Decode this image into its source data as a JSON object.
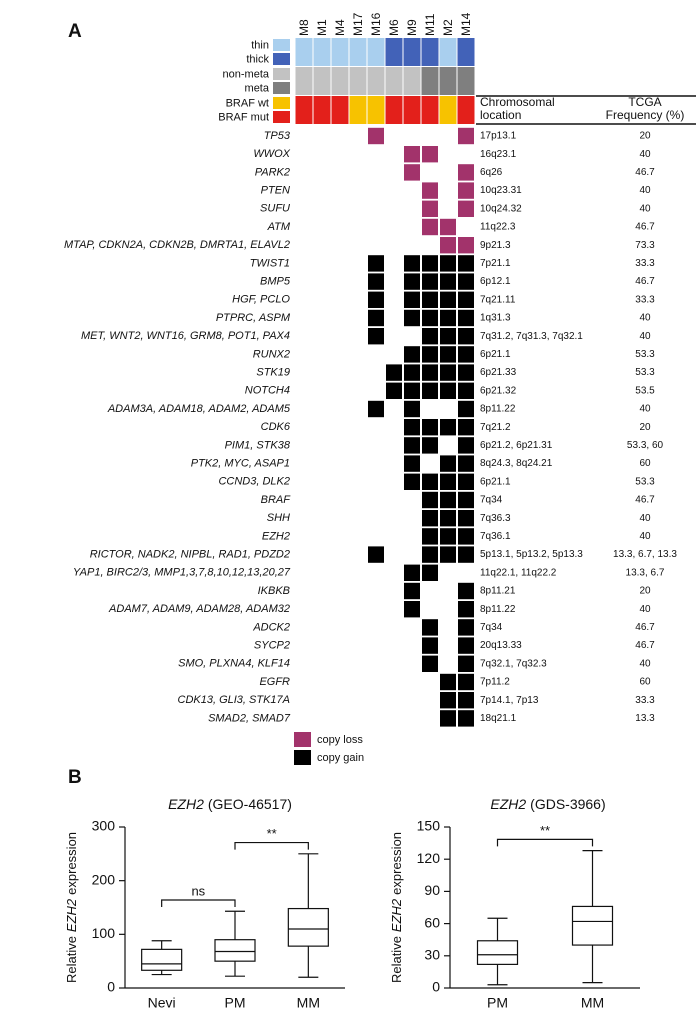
{
  "panel_a": {
    "label": "A",
    "thickness_legend": [
      {
        "label": "thin",
        "color": "#a9cfee"
      },
      {
        "label": "thick",
        "color": "#4262b8"
      }
    ],
    "metastasis_legend": [
      {
        "label": "non-meta",
        "color": "#c2c2c2"
      },
      {
        "label": "meta",
        "color": "#7f7f7f"
      }
    ],
    "braf_legend": [
      {
        "label": "BRAF wt",
        "color": "#f7c200"
      },
      {
        "label": "BRAF mut",
        "color": "#e3201b"
      }
    ],
    "samples": [
      {
        "name": "M8",
        "thickness": "thin",
        "metastasis": "non-meta",
        "braf": "BRAF mut"
      },
      {
        "name": "M1",
        "thickness": "thin",
        "metastasis": "non-meta",
        "braf": "BRAF mut"
      },
      {
        "name": "M4",
        "thickness": "thin",
        "metastasis": "non-meta",
        "braf": "BRAF mut"
      },
      {
        "name": "M17",
        "thickness": "thin",
        "metastasis": "non-meta",
        "braf": "BRAF wt"
      },
      {
        "name": "M16",
        "thickness": "thin",
        "metastasis": "non-meta",
        "braf": "BRAF wt"
      },
      {
        "name": "M6",
        "thickness": "thick",
        "metastasis": "non-meta",
        "braf": "BRAF mut"
      },
      {
        "name": "M9",
        "thickness": "thick",
        "metastasis": "non-meta",
        "braf": "BRAF mut"
      },
      {
        "name": "M11",
        "thickness": "thick",
        "metastasis": "meta",
        "braf": "BRAF mut"
      },
      {
        "name": "M2",
        "thickness": "thin",
        "metastasis": "meta",
        "braf": "BRAF wt"
      },
      {
        "name": "M14",
        "thickness": "thick",
        "metastasis": "meta",
        "braf": "BRAF mut"
      }
    ],
    "column_headers": {
      "location": [
        "Chromosomal",
        "location"
      ],
      "frequency": [
        "TCGA",
        "Frequency (%)"
      ]
    },
    "rows": [
      {
        "gene": "TP53",
        "loss": [
          "M16",
          "M14"
        ],
        "location": "17p13.1",
        "frequency": "20"
      },
      {
        "gene": "WWOX",
        "loss": [
          "M9",
          "M11"
        ],
        "location": "16q23.1",
        "frequency": "40"
      },
      {
        "gene": "PARK2",
        "loss": [
          "M9",
          "M14"
        ],
        "location": "6q26",
        "frequency": "46.7"
      },
      {
        "gene": "PTEN",
        "loss": [
          "M11",
          "M14"
        ],
        "location": "10q23.31",
        "frequency": "40"
      },
      {
        "gene": "SUFU",
        "loss": [
          "M11",
          "M14"
        ],
        "location": "10q24.32",
        "frequency": "40"
      },
      {
        "gene": "ATM",
        "loss": [
          "M11",
          "M2"
        ],
        "location": "11q22.3",
        "frequency": "46.7"
      },
      {
        "gene": "MTAP, CDKN2A, CDKN2B, DMRTA1, ELAVL2",
        "loss": [
          "M2",
          "M14"
        ],
        "location": "9p21.3",
        "frequency": "73.3"
      },
      {
        "gene": "TWIST1",
        "gain": [
          "M16",
          "M9",
          "M11",
          "M2",
          "M14"
        ],
        "location": "7p21.1",
        "frequency": "33.3"
      },
      {
        "gene": "BMP5",
        "gain": [
          "M16",
          "M9",
          "M11",
          "M2",
          "M14"
        ],
        "location": "6p12.1",
        "frequency": "46.7"
      },
      {
        "gene": "HGF, PCLO",
        "gain": [
          "M16",
          "M9",
          "M11",
          "M2",
          "M14"
        ],
        "location": "7q21.11",
        "frequency": "33.3"
      },
      {
        "gene": "PTPRC, ASPM",
        "gain": [
          "M16",
          "M9",
          "M11",
          "M2",
          "M14"
        ],
        "location": "1q31.3",
        "frequency": "40"
      },
      {
        "gene": "MET, WNT2, WNT16, GRM8, POT1, PAX4",
        "gain": [
          "M16",
          "M11",
          "M2",
          "M14"
        ],
        "location": "7q31.2, 7q31.3, 7q32.1",
        "frequency": "40"
      },
      {
        "gene": "RUNX2",
        "gain": [
          "M9",
          "M11",
          "M2",
          "M14"
        ],
        "location": "6p21.1",
        "frequency": "53.3"
      },
      {
        "gene": "STK19",
        "gain": [
          "M6",
          "M9",
          "M11",
          "M2",
          "M14"
        ],
        "location": "6p21.33",
        "frequency": "53.3"
      },
      {
        "gene": "NOTCH4",
        "gain": [
          "M6",
          "M9",
          "M11",
          "M2",
          "M14"
        ],
        "location": "6p21.32",
        "frequency": "53.5"
      },
      {
        "gene": "ADAM3A, ADAM18, ADAM2, ADAM5",
        "gain": [
          "M16",
          "M9",
          "M14"
        ],
        "location": "8p11.22",
        "frequency": "40"
      },
      {
        "gene": "CDK6",
        "gain": [
          "M9",
          "M11",
          "M2",
          "M14"
        ],
        "location": "7q21.2",
        "frequency": "20"
      },
      {
        "gene": "PIM1, STK38",
        "gain": [
          "M9",
          "M11",
          "M14"
        ],
        "location": "6p21.2, 6p21.31",
        "frequency": "53.3, 60"
      },
      {
        "gene": "PTK2, MYC, ASAP1",
        "gain": [
          "M9",
          "M2",
          "M14"
        ],
        "location": "8q24.3, 8q24.21",
        "frequency": "60"
      },
      {
        "gene": "CCND3, DLK2",
        "gain": [
          "M9",
          "M11",
          "M2",
          "M14"
        ],
        "location": "6p21.1",
        "frequency": "53.3"
      },
      {
        "gene": "BRAF",
        "gain": [
          "M11",
          "M2",
          "M14"
        ],
        "location": "7q34",
        "frequency": "46.7"
      },
      {
        "gene": "SHH",
        "gain": [
          "M11",
          "M2",
          "M14"
        ],
        "location": "7q36.3",
        "frequency": "40"
      },
      {
        "gene": "EZH2",
        "gain": [
          "M11",
          "M2",
          "M14"
        ],
        "location": "7q36.1",
        "frequency": "40"
      },
      {
        "gene": "RICTOR, NADK2, NIPBL, RAD1, PDZD2",
        "gain": [
          "M16",
          "M11",
          "M2",
          "M14"
        ],
        "location": "5p13.1, 5p13.2, 5p13.3",
        "frequency": "13.3, 6.7, 13.3"
      },
      {
        "gene": "YAP1, BIRC2/3, MMP1,3,7,8,10,12,13,20,27",
        "gain": [
          "M9",
          "M11"
        ],
        "location": "11q22.1, 11q22.2",
        "frequency": "13.3, 6.7"
      },
      {
        "gene": "IKBKB",
        "gain": [
          "M9",
          "M14"
        ],
        "location": "8p11.21",
        "frequency": "20"
      },
      {
        "gene": "ADAM7, ADAM9, ADAM28, ADAM32",
        "gain": [
          "M9",
          "M14"
        ],
        "location": "8p11.22",
        "frequency": "40"
      },
      {
        "gene": "ADCK2",
        "gain": [
          "M11",
          "M14"
        ],
        "location": "7q34",
        "frequency": "46.7"
      },
      {
        "gene": "SYCP2",
        "gain": [
          "M11",
          "M14"
        ],
        "location": "20q13.33",
        "frequency": "46.7"
      },
      {
        "gene": "SMO, PLXNA4, KLF14",
        "gain": [
          "M11",
          "M14"
        ],
        "location": "7q32.1, 7q32.3",
        "frequency": "40"
      },
      {
        "gene": "EGFR",
        "gain": [
          "M2",
          "M14"
        ],
        "location": "7p11.2",
        "frequency": "60"
      },
      {
        "gene": "CDK13, GLI3, STK17A",
        "gain": [
          "M2",
          "M14"
        ],
        "location": "7p14.1, 7p13",
        "frequency": "33.3"
      },
      {
        "gene": "SMAD2, SMAD7",
        "gain": [
          "M2",
          "M14"
        ],
        "location": "18q21.1",
        "frequency": "13.3"
      }
    ],
    "legend": {
      "loss": {
        "label": "copy loss",
        "color": "#a2336b"
      },
      "gain": {
        "label": "copy gain",
        "color": "#000000"
      }
    }
  },
  "panel_b": {
    "label": "B",
    "charts": [
      {
        "type": "box",
        "title_gene": "EZH2",
        "title_dataset": "(GEO-46517)",
        "y_label": [
          "Relative",
          "EZH2",
          "expression"
        ],
        "categories": [
          "Nevi",
          "PM",
          "MM"
        ],
        "min": [
          25,
          22,
          20
        ],
        "q1": [
          33,
          50,
          78
        ],
        "median": [
          45,
          68,
          110
        ],
        "q3": [
          72,
          90,
          148
        ],
        "max": [
          88,
          143,
          250
        ],
        "ylim": [
          0,
          300
        ],
        "yticks": [
          0,
          100,
          200,
          300
        ],
        "annotations": [
          {
            "text": "ns",
            "between": [
              "Nevi",
              "PM"
            ]
          },
          {
            "text": "**",
            "between": [
              "PM",
              "MM"
            ]
          }
        ]
      },
      {
        "type": "box",
        "title_gene": "EZH2",
        "title_dataset": "(GDS-3966)",
        "y_label": [
          "Relative",
          "EZH2",
          "expression"
        ],
        "categories": [
          "PM",
          "MM"
        ],
        "min": [
          3,
          5
        ],
        "q1": [
          22,
          40
        ],
        "median": [
          31,
          62
        ],
        "q3": [
          44,
          76
        ],
        "max": [
          65,
          128
        ],
        "ylim": [
          0,
          150
        ],
        "yticks": [
          0,
          30,
          60,
          90,
          120,
          150
        ],
        "annotations": [
          {
            "text": "**",
            "between": [
              "PM",
              "MM"
            ]
          }
        ]
      }
    ]
  }
}
